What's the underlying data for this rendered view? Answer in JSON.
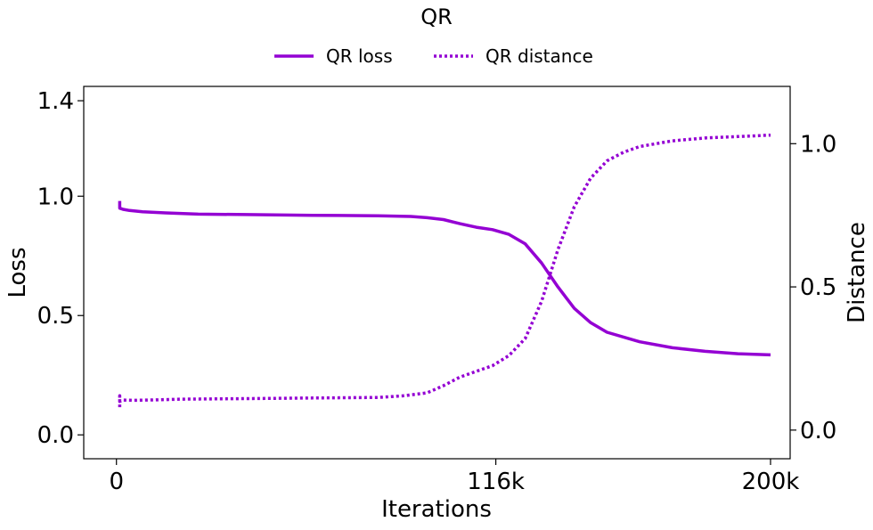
{
  "chart_data": {
    "type": "line",
    "title": "QR",
    "xlabel": "Iterations",
    "ylabel_left": "Loss",
    "ylabel_right": "Distance",
    "xlim": [
      -10000,
      206000
    ],
    "ylim_left": [
      -0.1,
      1.46
    ],
    "ylim_right": [
      -0.1,
      1.2
    ],
    "x_ticks": [
      0,
      116000,
      200000
    ],
    "x_tick_labels": [
      "0",
      "116k",
      "200k"
    ],
    "y_left_ticks": [
      0.0,
      0.5,
      1.0,
      1.4
    ],
    "y_left_tick_labels": [
      "0.0",
      "0.5",
      "1.0",
      "1.4"
    ],
    "y_right_ticks": [
      0.0,
      0.5,
      1.0
    ],
    "y_right_tick_labels": [
      "0.0",
      "0.5",
      "1.0"
    ],
    "grid": false,
    "legend_position": "top-center",
    "series": [
      {
        "name": "QR loss",
        "axis": "left",
        "style": "solid",
        "color": "#9400D3",
        "x": [
          1000,
          1000,
          2000,
          4000,
          8000,
          15000,
          25000,
          40000,
          60000,
          80000,
          90000,
          95000,
          100000,
          105000,
          110000,
          115000,
          120000,
          125000,
          130000,
          135000,
          140000,
          145000,
          150000,
          160000,
          170000,
          180000,
          190000,
          200000
        ],
        "y": [
          0.98,
          0.95,
          0.945,
          0.94,
          0.935,
          0.93,
          0.925,
          0.923,
          0.92,
          0.918,
          0.915,
          0.91,
          0.902,
          0.885,
          0.87,
          0.86,
          0.84,
          0.8,
          0.72,
          0.62,
          0.53,
          0.47,
          0.43,
          0.39,
          0.365,
          0.35,
          0.34,
          0.335
        ]
      },
      {
        "name": "QR distance",
        "axis": "right",
        "style": "dotted",
        "color": "#9400D3",
        "x": [
          1000,
          1000,
          1000,
          2000,
          5000,
          10000,
          20000,
          40000,
          60000,
          80000,
          88000,
          95000,
          100000,
          105000,
          110000,
          115000,
          120000,
          125000,
          130000,
          135000,
          140000,
          145000,
          150000,
          155000,
          160000,
          165000,
          170000,
          180000,
          190000,
          200000
        ],
        "y": [
          0.08,
          0.12,
          0.1,
          0.105,
          0.104,
          0.105,
          0.108,
          0.11,
          0.112,
          0.114,
          0.12,
          0.13,
          0.155,
          0.185,
          0.205,
          0.225,
          0.26,
          0.32,
          0.45,
          0.63,
          0.78,
          0.88,
          0.94,
          0.97,
          0.99,
          1.0,
          1.01,
          1.02,
          1.025,
          1.03
        ]
      }
    ]
  }
}
